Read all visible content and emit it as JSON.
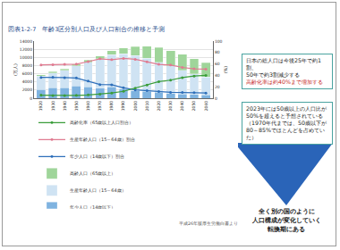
{
  "chart_data": {
    "type": "bar",
    "title": "図表1-2-7　年齢3区分別人口及び人口割合の推移と予測",
    "y_label": "(万人)",
    "y2_label": "(%)",
    "categories": [
      "1920",
      "1930",
      "1940",
      "1950",
      "1960",
      "1970",
      "1980",
      "1990",
      "2000",
      "2010",
      "2020",
      "2030",
      "2040",
      "2050",
      "2060"
    ],
    "series": [
      {
        "name": "年少人口（14歳以下）",
        "type": "bar",
        "color": "#7fb3e0",
        "values": [
          2125,
          2579,
          2620,
          2979,
          2807,
          2482,
          2751,
          2249,
          1847,
          1680,
          1457,
          1204,
          1073,
          939,
          791
        ]
      },
      {
        "name": "生産年齢人口（15～64歳）",
        "type": "bar",
        "color": "#cfe3f3",
        "values": [
          3301,
          3622,
          4210,
          4966,
          6000,
          7157,
          7883,
          8590,
          8622,
          8103,
          7341,
          6773,
          5787,
          5001,
          4418
        ]
      },
      {
        "name": "高齢人口（65歳以上）",
        "type": "bar",
        "color": "#9fd59a",
        "values": [
          294,
          306,
          344,
          411,
          535,
          733,
          1065,
          1489,
          2204,
          2925,
          3612,
          3685,
          3868,
          3768,
          3464
        ]
      },
      {
        "name": "年少人口（14歳以下）割合",
        "type": "line",
        "axis": "y2",
        "color": "#2e6fba",
        "marker": "circle",
        "values": [
          36.5,
          36.6,
          36.1,
          35.4,
          30.2,
          23.9,
          23.5,
          18.2,
          14.6,
          13.1,
          11.7,
          10.3,
          10.0,
          9.7,
          9.1
        ]
      },
      {
        "name": "生産年齢人口（15～64歳）割合",
        "type": "line",
        "axis": "y2",
        "color": "#e07b91",
        "marker": "circle",
        "values": [
          58.3,
          58.7,
          59.2,
          59.7,
          64.1,
          69.0,
          67.4,
          69.7,
          68.1,
          63.8,
          59.2,
          58.1,
          53.9,
          51.5,
          50.9
        ]
      },
      {
        "name": "高齢化率（65歳以上人口割合）",
        "type": "line",
        "axis": "y2",
        "color": "#3a9d3a",
        "marker": "circle",
        "values": [
          5.3,
          4.8,
          4.8,
          4.9,
          5.7,
          7.1,
          9.1,
          12.1,
          17.4,
          23.0,
          29.1,
          31.6,
          36.1,
          38.8,
          39.9
        ]
      }
    ],
    "ylim": [
      0,
      14000
    ],
    "yticks": [
      0,
      2000,
      4000,
      6000,
      8000,
      10000,
      12000,
      14000
    ],
    "y2lim": [
      0,
      100
    ],
    "y2ticks": [
      0,
      20,
      40,
      60,
      80,
      100
    ],
    "stacked": true,
    "grid": true,
    "legend": "bottom"
  },
  "callouts": [
    {
      "lines": [
        "日本の総人口は今後25年で約1割、",
        "50年で約3割減少する"
      ],
      "highlight": "高齢化率は約40%まで増加する"
    },
    {
      "lines": [
        "2023年には50歳以上の人口比が",
        "50%を超えると予想されている",
        "（1970年代までは、50歳以下が",
        "80～85%でほとんどを占めていた）"
      ]
    }
  ],
  "conclusion": {
    "lines": [
      "全く別の国のように",
      "人口構成が変化していく",
      "転換期にある"
    ]
  },
  "source": "平成26年版厚生労働白書より"
}
